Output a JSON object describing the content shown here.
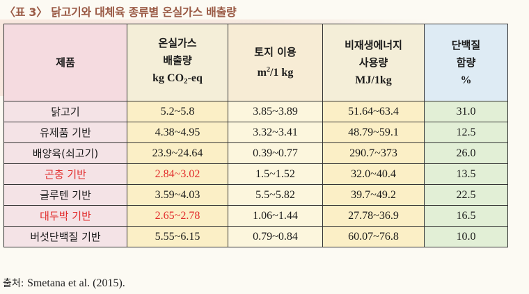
{
  "title": "〈표 3〉 닭고기와 대체육 종류별 온실가스 배출량",
  "header": {
    "product": "제품",
    "ghg_line1": "온실가스",
    "ghg_line2": "배출량",
    "ghg_unit_pre": "kg CO",
    "ghg_unit_sub": "2",
    "ghg_unit_post": "-eq",
    "land_line1": "토지 이용",
    "land_unit_pre": "m",
    "land_unit_sup": "2",
    "land_unit_post": "/1 kg",
    "energy_line1": "비재생에너지",
    "energy_line2": "사용량",
    "energy_unit": "MJ/1kg",
    "protein_line1": "단백질",
    "protein_line2": "함량",
    "protein_unit": "%"
  },
  "rows": [
    {
      "product": "닭고기",
      "ghg": "5.2~5.8",
      "land": "3.85~3.89",
      "energy": "51.64~63.4",
      "protein": "31.0",
      "highlight": false
    },
    {
      "product": "유제품 기반",
      "ghg": "4.38~4.95",
      "land": "3.32~3.41",
      "energy": "48.79~59.1",
      "protein": "12.5",
      "highlight": false
    },
    {
      "product": "배양육(쇠고기)",
      "ghg": "23.9~24.64",
      "land": "0.39~0.77",
      "energy": "290.7~373",
      "protein": "26.0",
      "highlight": false
    },
    {
      "product": "곤충 기반",
      "ghg": "2.84~3.02",
      "land": "1.5~1.52",
      "energy": "32.0~40.4",
      "protein": "13.5",
      "highlight": true
    },
    {
      "product": "글루텐 기반",
      "ghg": "3.59~4.03",
      "land": "5.5~5.82",
      "energy": "39.7~49.2",
      "protein": "22.5",
      "highlight": false
    },
    {
      "product": "대두박 기반",
      "ghg": "2.65~2.78",
      "land": "1.06~1.44",
      "energy": "27.78~36.9",
      "protein": "16.5",
      "highlight": true
    },
    {
      "product": "버섯단백질 기반",
      "ghg": "5.55~6.15",
      "land": "0.79~0.84",
      "energy": "60.07~76.8",
      "protein": "10.0",
      "highlight": false
    }
  ],
  "source": {
    "label": "출처: ",
    "ref": "Smetana et al. (2015)."
  },
  "colors": {
    "title": "#9a5a45",
    "highlight_text": "#e12b2b",
    "name_col_bg": "#f4e3e6",
    "ghg_col_bg": "#fbefc6",
    "land_col_bg": "#fcf6dd",
    "protein_col_bg": "#e2efd6",
    "protein_header_bg": "#deebf4"
  }
}
